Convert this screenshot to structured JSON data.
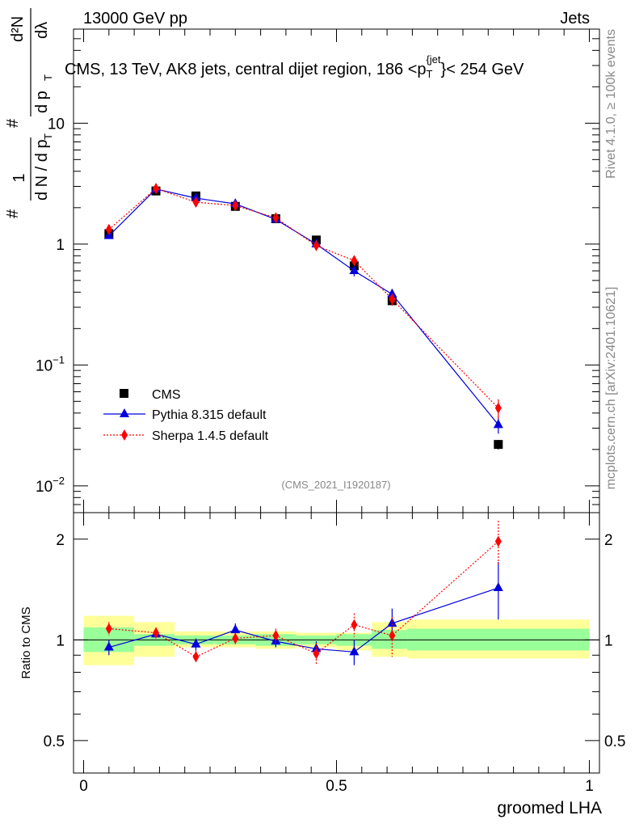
{
  "header": {
    "energy_label": "13000 GeV pp",
    "category_label": "Jets"
  },
  "side_labels": {
    "rivet": "Rivet 4.1.0, ≥ 100k events",
    "mcplots": "mcplots.cern.ch [arXiv:2401.10621]"
  },
  "chart_data": [
    {
      "type": "scatter",
      "panel": "main",
      "title": "CMS, 13 TeV, AK8 jets, central dijet region, 186 <p_T^{jet}>< 254 GeV",
      "title_parts": {
        "main": "CMS, 13 TeV, AK8 jets, central dijet region, 186 <p",
        "sup": "{jet",
        "sub": "T",
        "tail": "}< 254 GeV"
      },
      "ylabel": "(1/(dN/dpT)) d²N/(dpT dλ)",
      "ylabel_parts": {
        "hash": "#",
        "one": "1",
        "dN": "d N / d p",
        "T": "T",
        "d2N": "d²N",
        "dp": "d p",
        "dlambda": "dλ"
      },
      "yscale": "log",
      "ylim": [
        0.006,
        60
      ],
      "xlim": [
        -0.02,
        1.02
      ],
      "yticks": [
        {
          "value": 0.01,
          "label": "10",
          "exp": "−2"
        },
        {
          "value": 0.1,
          "label": "10",
          "exp": "−1"
        },
        {
          "value": 1,
          "label": "1",
          "exp": ""
        },
        {
          "value": 10,
          "label": "10",
          "exp": ""
        }
      ],
      "watermark": "(CMS_2021_I1920187)",
      "legend_position": "lower-left",
      "x": [
        0.05,
        0.143,
        0.222,
        0.3,
        0.38,
        0.46,
        0.535,
        0.61,
        0.82
      ],
      "series": [
        {
          "name": "CMS",
          "color": "#000000",
          "marker": "square",
          "values": [
            1.22,
            2.75,
            2.5,
            2.05,
            1.62,
            1.08,
            0.66,
            0.34,
            0.022
          ],
          "errors": [
            0.05,
            0.08,
            0.07,
            0.06,
            0.05,
            0.04,
            0.03,
            0.02,
            0.002
          ]
        },
        {
          "name": "Pythia 8.315 default",
          "color": "#0000dd",
          "marker": "triangle",
          "line": "solid",
          "values": [
            1.17,
            2.85,
            2.4,
            2.15,
            1.6,
            1.0,
            0.6,
            0.385,
            0.032
          ],
          "errors": [
            0.05,
            0.08,
            0.07,
            0.09,
            0.06,
            0.06,
            0.06,
            0.04,
            0.005
          ]
        },
        {
          "name": "Sherpa 1.4.5 default",
          "color": "#ff0000",
          "marker": "diamond",
          "line": "dotted",
          "values": [
            1.32,
            2.88,
            2.22,
            2.08,
            1.65,
            0.97,
            0.73,
            0.35,
            0.044
          ],
          "errors": [
            0.06,
            0.09,
            0.08,
            0.08,
            0.06,
            0.07,
            0.06,
            0.04,
            0.008
          ]
        }
      ]
    },
    {
      "type": "scatter",
      "panel": "ratio",
      "ylabel": "Ratio to CMS",
      "xlabel": "groomed LHA",
      "yscale": "log",
      "ylim": [
        0.4,
        2.4
      ],
      "xlim": [
        -0.02,
        1.02
      ],
      "yticks": [
        {
          "value": 0.5,
          "label": "0.5"
        },
        {
          "value": 1,
          "label": "1"
        },
        {
          "value": 2,
          "label": "2"
        }
      ],
      "xticks": [
        {
          "value": 0,
          "label": "0"
        },
        {
          "value": 0.5,
          "label": "0.5"
        },
        {
          "value": 1,
          "label": "1"
        }
      ],
      "bins": [
        0.0,
        0.1,
        0.18,
        0.26,
        0.34,
        0.42,
        0.5,
        0.57,
        0.64,
        1.0
      ],
      "band_inner": [
        [
          0.92,
          1.09
        ],
        [
          0.96,
          1.04
        ],
        [
          0.97,
          1.03
        ],
        [
          0.97,
          1.03
        ],
        [
          0.96,
          1.04
        ],
        [
          0.97,
          1.03
        ],
        [
          0.96,
          1.04
        ],
        [
          0.94,
          1.07
        ],
        [
          0.93,
          1.08
        ]
      ],
      "band_outer": [
        [
          0.84,
          1.18
        ],
        [
          0.89,
          1.13
        ],
        [
          0.95,
          1.06
        ],
        [
          0.95,
          1.06
        ],
        [
          0.94,
          1.06
        ],
        [
          0.95,
          1.05
        ],
        [
          0.93,
          1.05
        ],
        [
          0.89,
          1.13
        ],
        [
          0.88,
          1.15
        ]
      ],
      "x": [
        0.05,
        0.143,
        0.222,
        0.3,
        0.38,
        0.46,
        0.535,
        0.61,
        0.82
      ],
      "series": [
        {
          "name": "Pythia 8.315 default",
          "color": "#0000dd",
          "marker": "triangle",
          "line": "solid",
          "values": [
            0.95,
            1.04,
            0.97,
            1.07,
            0.99,
            0.94,
            0.92,
            1.12,
            1.43
          ],
          "errors": [
            0.05,
            0.03,
            0.04,
            0.05,
            0.04,
            0.05,
            0.08,
            0.12,
            0.28
          ]
        },
        {
          "name": "Sherpa 1.4.5 default",
          "color": "#ff0000",
          "marker": "diamond",
          "line": "dotted",
          "values": [
            1.08,
            1.05,
            0.89,
            1.01,
            1.03,
            0.91,
            1.11,
            1.03,
            1.97
          ],
          "errors": [
            0.05,
            0.04,
            0.04,
            0.04,
            0.05,
            0.07,
            0.09,
            0.14,
            0.3
          ]
        }
      ]
    }
  ]
}
